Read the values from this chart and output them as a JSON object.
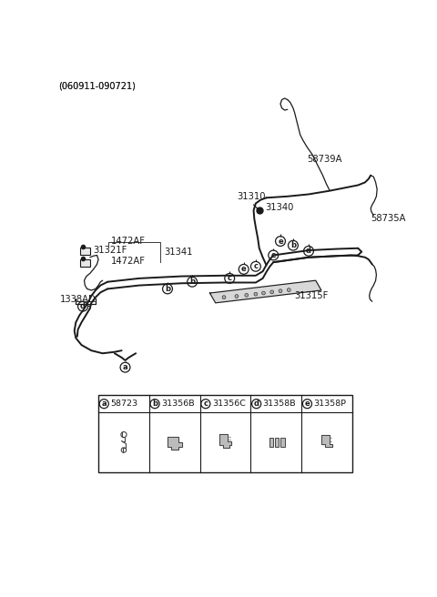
{
  "title": "(060911-090721)",
  "bg_color": "#ffffff",
  "line_color": "#1a1a1a",
  "fig_width": 4.8,
  "fig_height": 6.56,
  "dpi": 100,
  "legend_items": [
    {
      "letter": "a",
      "part": "58723"
    },
    {
      "letter": "b",
      "part": "31356B"
    },
    {
      "letter": "c",
      "part": "31356C"
    },
    {
      "letter": "d",
      "part": "31358B"
    },
    {
      "letter": "e",
      "part": "31358P"
    }
  ]
}
